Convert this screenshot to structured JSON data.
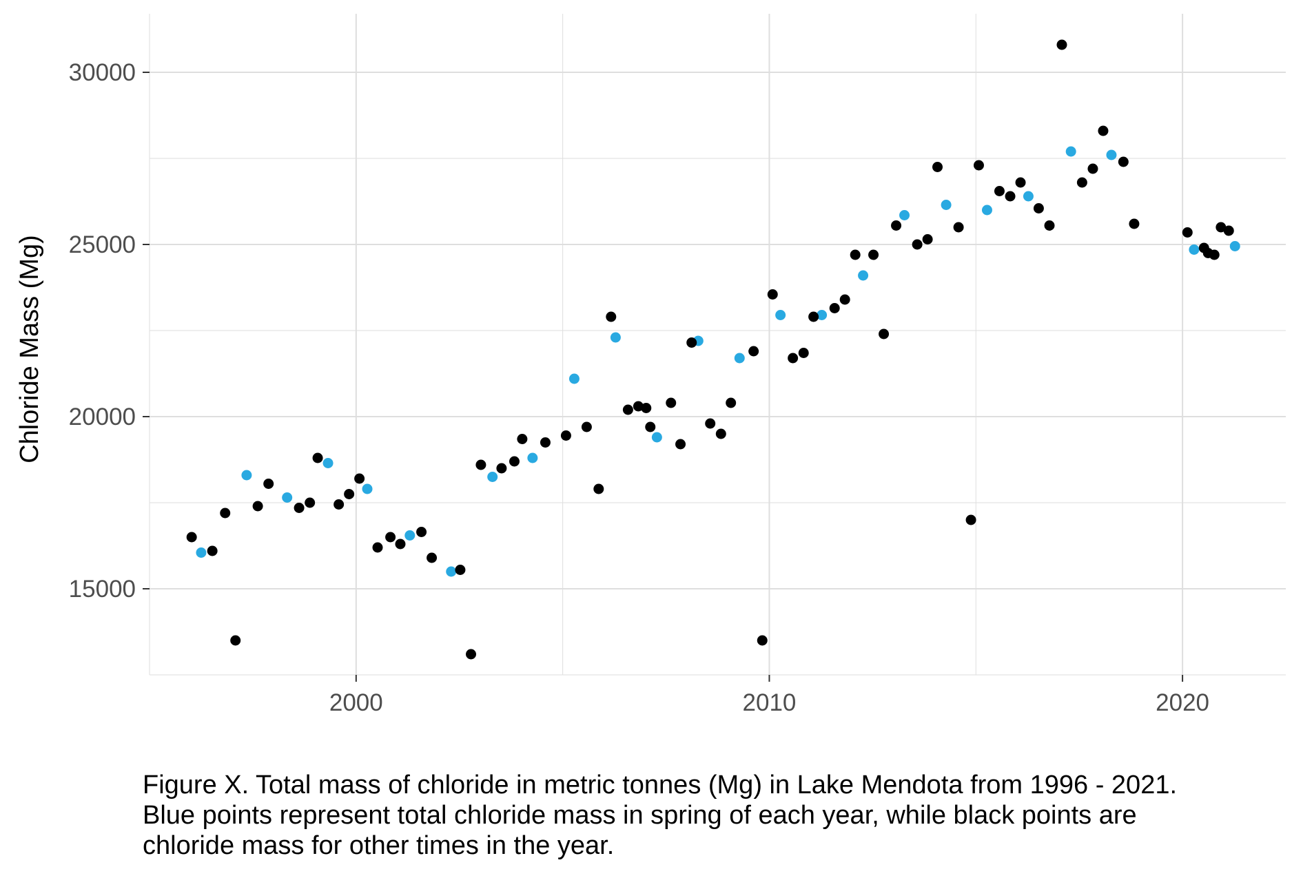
{
  "chart_data": {
    "type": "scatter",
    "title": "",
    "xlabel": "",
    "ylabel": "Chloride Mass (Mg)",
    "xlim": [
      1995,
      2022.5
    ],
    "ylim": [
      12500,
      31700
    ],
    "xticks": [
      2000,
      2010,
      2020
    ],
    "xtick_labels": [
      "2000",
      "2010",
      "2020"
    ],
    "yticks": [
      15000,
      20000,
      25000,
      30000
    ],
    "ytick_labels": [
      "15000",
      "20000",
      "25000",
      "30000"
    ],
    "grid": true,
    "legend": "none",
    "colors": {
      "spring": "#29a9e1",
      "other": "#000000",
      "grid": "#dedede"
    },
    "series": [
      {
        "name": "Spring",
        "color": "#29a9e1",
        "x": [
          1996.25,
          1997.35,
          1998.33,
          1999.32,
          2000.27,
          2001.3,
          2002.3,
          2003.3,
          2004.27,
          2005.28,
          2006.28,
          2007.28,
          2008.28,
          2009.28,
          2010.27,
          2011.27,
          2012.27,
          2013.27,
          2014.28,
          2015.27,
          2016.27,
          2017.3,
          2018.28,
          2020.28,
          2021.27
        ],
        "y": [
          16050,
          18300,
          17650,
          18650,
          17900,
          16550,
          15500,
          18250,
          18800,
          21100,
          22300,
          19400,
          22200,
          21700,
          22950,
          22950,
          24100,
          25850,
          26150,
          26000,
          26400,
          27700,
          27600,
          24850,
          24950
        ]
      },
      {
        "name": "Other times",
        "color": "#000000",
        "x": [
          1996.02,
          1996.52,
          1996.83,
          1997.08,
          1997.62,
          1997.88,
          1998.62,
          1998.88,
          1999.07,
          1999.58,
          1999.83,
          2000.08,
          2000.52,
          2000.83,
          2001.07,
          2001.58,
          2001.83,
          2002.52,
          2002.78,
          2003.02,
          2003.52,
          2003.83,
          2004.02,
          2004.58,
          2005.08,
          2005.58,
          2005.87,
          2006.17,
          2006.58,
          2006.83,
          2007.02,
          2007.12,
          2007.62,
          2007.85,
          2008.12,
          2008.57,
          2008.83,
          2009.07,
          2009.62,
          2009.83,
          2010.08,
          2010.57,
          2010.83,
          2011.07,
          2011.58,
          2011.83,
          2012.08,
          2012.52,
          2012.77,
          2013.07,
          2013.58,
          2013.83,
          2014.07,
          2014.58,
          2014.88,
          2015.07,
          2015.57,
          2015.83,
          2016.08,
          2016.52,
          2016.78,
          2017.08,
          2017.57,
          2017.83,
          2018.08,
          2018.57,
          2018.83,
          2020.12,
          2020.52,
          2020.62,
          2020.77,
          2020.93,
          2021.12
        ],
        "y": [
          16500,
          16100,
          17200,
          13500,
          17400,
          18050,
          17350,
          17500,
          18800,
          17450,
          17750,
          18200,
          16200,
          16500,
          16300,
          16650,
          15900,
          15550,
          13100,
          18600,
          18500,
          18700,
          19350,
          19250,
          19450,
          19700,
          17900,
          22900,
          20200,
          20300,
          20250,
          19700,
          20400,
          19200,
          22150,
          19800,
          19500,
          20400,
          21900,
          13500,
          23550,
          21700,
          21850,
          22900,
          23150,
          23400,
          24700,
          24700,
          22400,
          25550,
          25000,
          25150,
          27250,
          25500,
          17000,
          27300,
          26550,
          26400,
          26800,
          26050,
          25550,
          30800,
          26800,
          27200,
          28300,
          27400,
          25600,
          25350,
          24900,
          24750,
          24700,
          25500,
          25400
        ]
      }
    ]
  },
  "caption": "Figure X. Total mass of chloride in metric tonnes (Mg) in Lake Mendota from 1996 - 2021.\nBlue points represent total chloride mass in spring of each year, while black points are\nchloride mass for other times in the year."
}
